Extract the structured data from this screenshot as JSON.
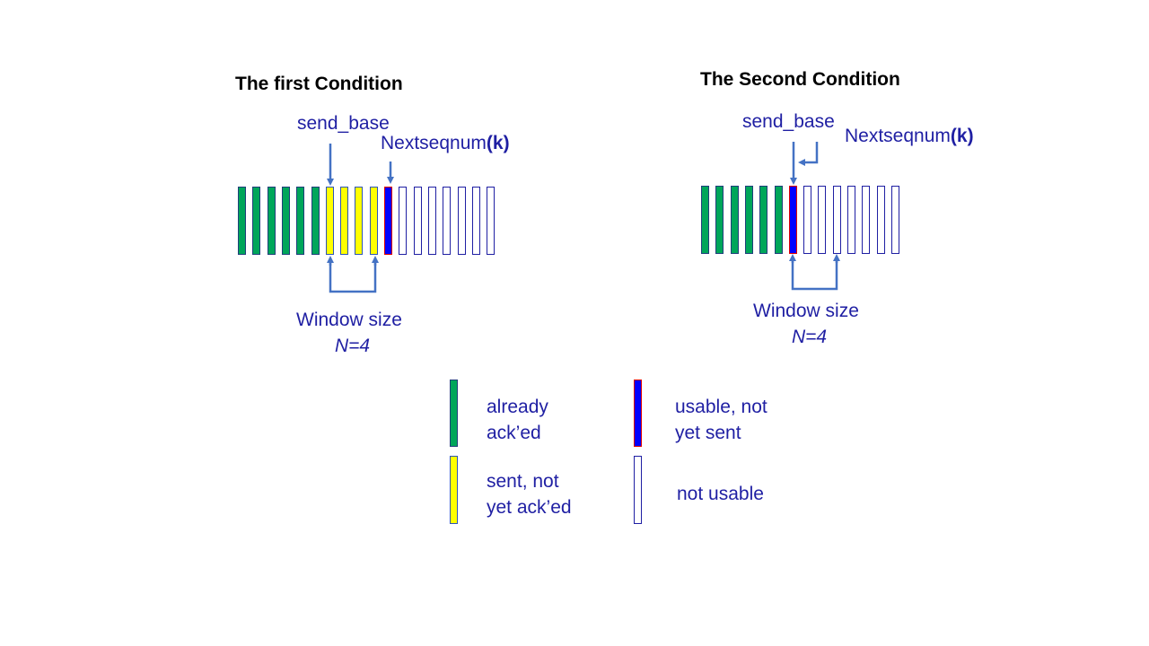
{
  "colors": {
    "acked": "#00a65a",
    "sent": "#ffff00",
    "usable": "#0000ff",
    "usable_border": "#e00000",
    "not_usable_border": "#1f1fa3",
    "label": "#1f1fa3",
    "arrow": "#4472c4"
  },
  "panel_left": {
    "title": "The first Condition",
    "send_base": "send_base",
    "nextseq_main": "Nextseqnum",
    "nextseq_k": "(k)",
    "window_label": "Window size",
    "window_n": "N=4",
    "counts": {
      "acked": 6,
      "sent": 4,
      "usable": 1,
      "not_usable": 7
    }
  },
  "panel_right": {
    "title": "The Second Condition",
    "send_base": "send_base",
    "nextseq_main": "Nextseqnum",
    "nextseq_k": "(k)",
    "window_label": "Window size",
    "window_n": "N=4",
    "counts": {
      "acked": 6,
      "sent": 0,
      "usable": 1,
      "not_usable": 7
    }
  },
  "legend": {
    "acked_line1": "already",
    "acked_line2": "ack’ed",
    "usable_line1": "usable, not",
    "usable_line2": "yet sent",
    "sent_line1": "sent, not",
    "sent_line2": "yet ack’ed",
    "not_usable": "not usable"
  }
}
